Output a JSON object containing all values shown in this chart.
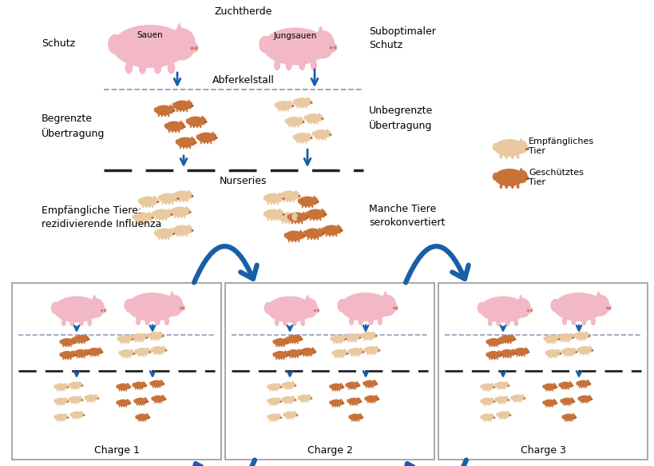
{
  "bg_color": "#ffffff",
  "pink_color": "#F2B8C6",
  "brown_color": "#C8723A",
  "light_brown_color": "#E8C9A0",
  "blue_arrow_color": "#1A5EA8",
  "dashed_line_color": "#9999BB",
  "dashed_black_color": "#222222",
  "box_color": "#999999",
  "text_color": "#000000",
  "labels": {
    "zuchtherde": "Zuchtherde",
    "sauen": "Sauen",
    "jungsauen": "Jungsauen",
    "schutz": "Schutz",
    "suboptimaler_schutz": "Suboptimaler\nSchutz",
    "abferkelstall": "Abferkelstall",
    "nurseries": "Nurseries",
    "begrenzte": "Begrenzte\nÜbertragung",
    "unbegrenzte": "Unbegrenzte\nÜbertragung",
    "empfaengliche": "Empfängliche Tiere:\nrezidivierende Influenza",
    "manche": "Manche Tiere\nserokonvertiert",
    "empfaengliches": "Empfängliches\nTier",
    "geschuetztes": "Geschütztes\nTier",
    "charge1": "Charge 1",
    "charge2": "Charge 2",
    "charge3": "Charge 3"
  }
}
